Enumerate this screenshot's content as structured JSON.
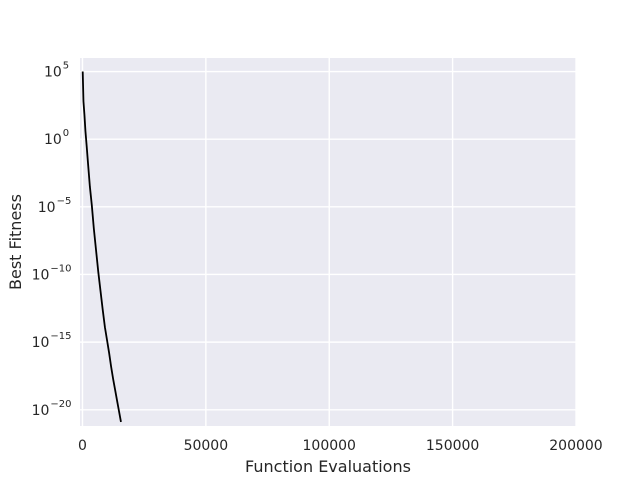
{
  "chart_data": {
    "type": "line",
    "title": "",
    "xlabel": "Function Evaluations",
    "ylabel": "Best Fitness",
    "xscale": "linear",
    "yscale": "log",
    "xlim": [
      -1000,
      200000
    ],
    "ylim_exponent": [
      -21.2,
      6.0
    ],
    "xticks": [
      0,
      50000,
      100000,
      150000,
      200000
    ],
    "xtick_labels": [
      "0",
      "50000",
      "100000",
      "150000",
      "200000"
    ],
    "ytick_exponents": [
      5,
      0,
      -5,
      -10,
      -15,
      -20
    ],
    "ytick_exponent_labels": [
      "5",
      "0",
      "−5",
      "−10",
      "−15",
      "−20"
    ],
    "ytick_base": "10",
    "grid": true,
    "legend": "none",
    "colors": {
      "background": "#eaeaf2",
      "grid": "#ffffff",
      "line": "#000000",
      "text": "#262626"
    },
    "series": [
      {
        "color": "#000000",
        "x": [
          100,
          400,
          800,
          1200,
          1700,
          2300,
          3000,
          3800,
          4600,
          5500,
          6400,
          7300,
          8200,
          9100,
          10000,
          10800,
          11600,
          12400,
          13200,
          14000,
          14800,
          15600
        ],
        "y_exponent": [
          5.0,
          2.8,
          1.8,
          0.6,
          -0.5,
          -1.9,
          -3.5,
          -4.9,
          -6.6,
          -8.2,
          -9.8,
          -11.2,
          -12.6,
          -13.9,
          -14.9,
          -15.8,
          -16.8,
          -17.7,
          -18.5,
          -19.3,
          -20.1,
          -20.9
        ]
      }
    ]
  }
}
